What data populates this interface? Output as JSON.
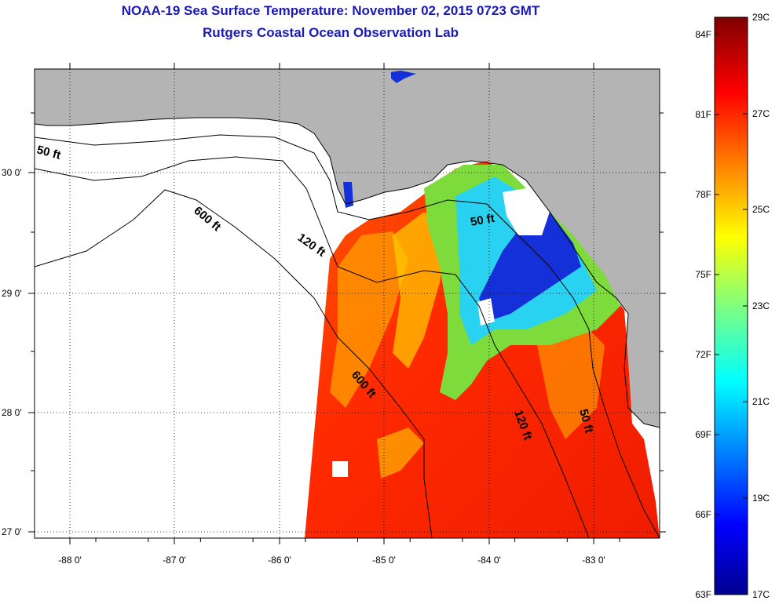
{
  "title": {
    "line1": "NOAA-19 Sea Surface Temperature:  November 02, 2015 0723 GMT",
    "line2": "Rutgers Coastal Ocean Observation Lab"
  },
  "map": {
    "x_ticks": [
      "-88 0'",
      "-87 0'",
      "-86 0'",
      "-85 0'",
      "-84 0'",
      "-83 0'"
    ],
    "y_ticks": [
      "30 0'",
      "29 0'",
      "28 0'",
      "27 0'"
    ],
    "contours": {
      "c50_west": "50 ft",
      "c600_north": "600 ft",
      "c120_north": "120 ft",
      "c50_east": "50 ft",
      "c600_south": "600 ft",
      "c120_south": "120 ft",
      "c50_south": "50 ft"
    }
  },
  "colorbar": {
    "fahrenheit": [
      "84F",
      "81F",
      "78F",
      "75F",
      "72F",
      "69F",
      "66F",
      "63F"
    ],
    "celsius": [
      "29C",
      "27C",
      "25C",
      "23C",
      "21C",
      "19C",
      "17C"
    ]
  },
  "colors": {
    "land": "#b4b4b4",
    "title": "#1a1ab4"
  }
}
